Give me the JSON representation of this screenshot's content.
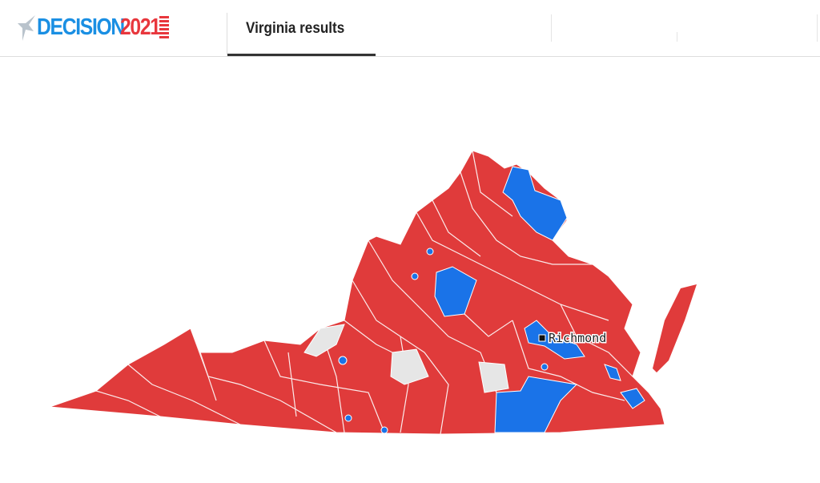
{
  "header": {
    "logo": {
      "word": "DECISION",
      "year": "2021"
    },
    "tabs": [
      {
        "label": "Virginia results",
        "active": true
      }
    ]
  },
  "map": {
    "state": "Virginia",
    "city_label": "Richmond",
    "colors": {
      "republican": "#e03b3b",
      "democrat": "#1a73e8",
      "no_data": "#e6e6e6",
      "border": "#ffffff"
    }
  }
}
